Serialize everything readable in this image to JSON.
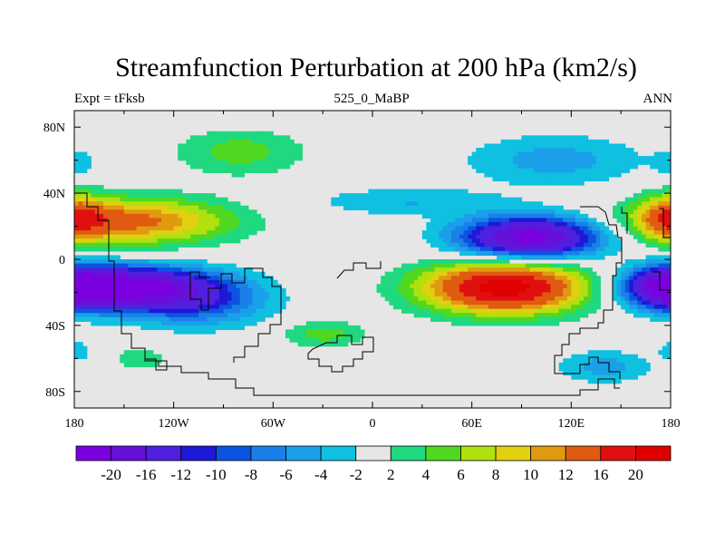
{
  "chart_data": {
    "type": "contour-map",
    "title": "Streamfunction Perturbation at 200 hPa (km2/s)",
    "subtitle_left": "Expt = tFksb",
    "subtitle_center": "525_0_MaBP",
    "subtitle_right": "ANN",
    "xlim": [
      -180,
      180
    ],
    "ylim": [
      -90,
      90
    ],
    "x_ticks": [
      {
        "value": -180,
        "label": "180"
      },
      {
        "value": -120,
        "label": "120W"
      },
      {
        "value": -60,
        "label": "60W"
      },
      {
        "value": 0,
        "label": "0"
      },
      {
        "value": 60,
        "label": "60E"
      },
      {
        "value": 120,
        "label": "120E"
      },
      {
        "value": 180,
        "label": "180"
      }
    ],
    "y_ticks": [
      {
        "value": 80,
        "label": "80N"
      },
      {
        "value": 40,
        "label": "40N"
      },
      {
        "value": 0,
        "label": "0"
      },
      {
        "value": -40,
        "label": "40S"
      },
      {
        "value": -80,
        "label": "80S"
      }
    ],
    "levels": [
      -20,
      -16,
      -12,
      -10,
      -8,
      -6,
      -4,
      -2,
      2,
      4,
      6,
      8,
      10,
      12,
      16,
      20
    ],
    "level_labels": [
      "-20",
      "-16",
      "-12",
      "-10",
      "-8",
      "-6",
      "-4",
      "-2",
      "2",
      "4",
      "6",
      "8",
      "10",
      "12",
      "16",
      "20"
    ],
    "colors": [
      "#7a00e0",
      "#6610d8",
      "#5020e0",
      "#1e18d8",
      "#0a55e0",
      "#1a80e8",
      "#1aa0e8",
      "#10c0e0",
      "#e6e6e6",
      "#20d880",
      "#50d820",
      "#b0e010",
      "#e0d010",
      "#e09a10",
      "#e05a10",
      "#e01010",
      "#e00000"
    ],
    "anomalies": [
      {
        "lon": 95,
        "lat": 13,
        "sx": 30,
        "sy": 9,
        "amp": -22
      },
      {
        "lon": 80,
        "lat": -17,
        "sx": 35,
        "sy": 11,
        "amp": 22
      },
      {
        "lon": -145,
        "lat": -17,
        "sx": 38,
        "sy": 9,
        "amp": -21
      },
      {
        "lon": -145,
        "lat": 23,
        "sx": 42,
        "sy": 10,
        "amp": 13
      },
      {
        "lon": -105,
        "lat": -28,
        "sx": 30,
        "sy": 10,
        "amp": -7
      },
      {
        "lon": -80,
        "lat": 65,
        "sx": 28,
        "sy": 10,
        "amp": 5
      },
      {
        "lon": 110,
        "lat": 60,
        "sx": 38,
        "sy": 11,
        "amp": -5
      },
      {
        "lon": 180,
        "lat": 25,
        "sx": 14,
        "sy": 10,
        "amp": 10
      },
      {
        "lon": 180,
        "lat": -17,
        "sx": 18,
        "sy": 9,
        "amp": -16
      },
      {
        "lon": -30,
        "lat": -45,
        "sx": 18,
        "sy": 6,
        "amp": 5
      },
      {
        "lon": 20,
        "lat": 35,
        "sx": 40,
        "sy": 6,
        "amp": -4
      },
      {
        "lon": -140,
        "lat": -60,
        "sx": 10,
        "sy": 5,
        "amp": 4
      },
      {
        "lon": -178,
        "lat": 58,
        "sx": 8,
        "sy": 6,
        "amp": -3
      },
      {
        "lon": -178,
        "lat": -55,
        "sx": 7,
        "sy": 5,
        "amp": -3
      },
      {
        "lon": 140,
        "lat": -65,
        "sx": 20,
        "sy": 7,
        "amp": -5
      }
    ]
  }
}
